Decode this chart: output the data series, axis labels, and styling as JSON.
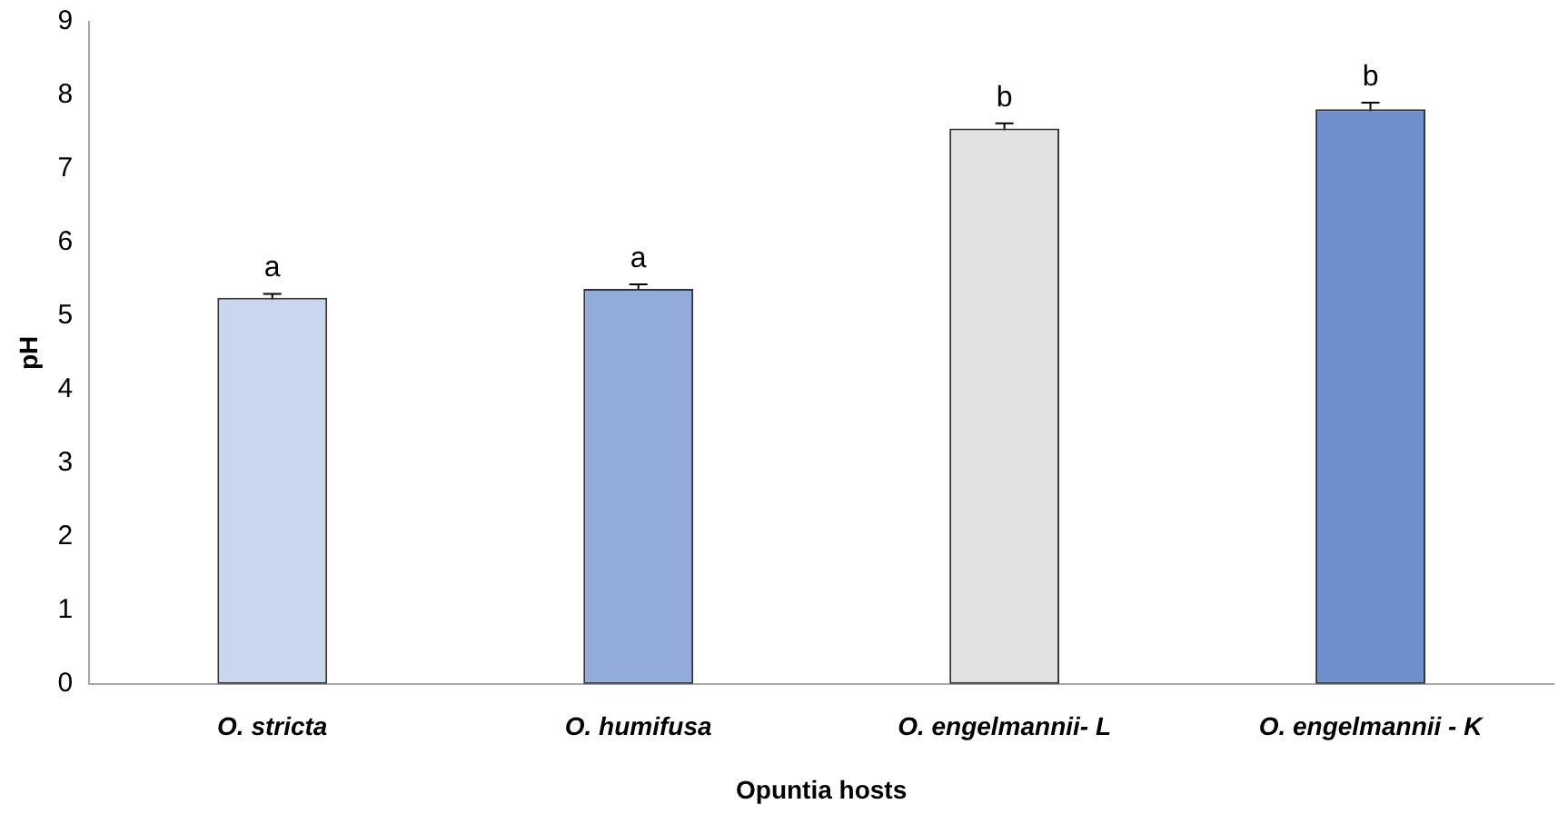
{
  "chart_data": {
    "type": "bar",
    "xlabel": "Opuntia hosts",
    "ylabel": "pH",
    "categories": [
      "O. stricta",
      "O. humifusa",
      "O. engelmannii- L",
      "O. engelmannii - K"
    ],
    "values": [
      5.25,
      5.37,
      7.55,
      7.81
    ],
    "errors": [
      0.05,
      0.06,
      0.07,
      0.09
    ],
    "colors": [
      "#c8d6ee",
      "#93abd8",
      "#e2e2e2",
      "#6f8fcc"
    ],
    "ylim": [
      0,
      9
    ],
    "yticks": [
      0,
      1,
      2,
      3,
      4,
      5,
      6,
      7,
      8,
      9
    ],
    "grid": false,
    "legend": false,
    "annotations": [
      {
        "text": "a",
        "x": "O. stricta",
        "y": 5.3
      },
      {
        "text": "a",
        "x": "O. humifusa",
        "y": 5.43
      },
      {
        "text": "b",
        "x": "O. engelmannii- L",
        "y": 7.62
      },
      {
        "text": "b",
        "x": "O. engelmannii - K",
        "y": 7.9
      }
    ]
  }
}
